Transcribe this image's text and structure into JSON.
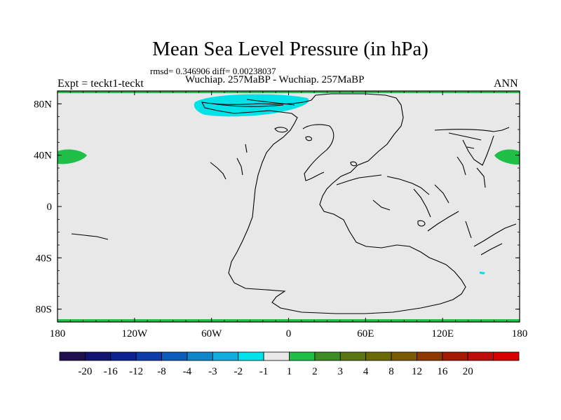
{
  "plot": {
    "title": "Mean Sea Level Pressure (in hPa)",
    "stats_line": "rmsd= 0.346906 diff= 0.00238037",
    "subtitle": "Wuchiap. 257MaBP - Wuchiap. 257MaBP",
    "left_label": "Expt = teckt1-teckt",
    "right_label": "ANN"
  },
  "axes": {
    "x_ticks": [
      {
        "value": -180,
        "label": "180"
      },
      {
        "value": -120,
        "label": "120W"
      },
      {
        "value": -60,
        "label": "60W"
      },
      {
        "value": 0,
        "label": "0"
      },
      {
        "value": 60,
        "label": "60E"
      },
      {
        "value": 120,
        "label": "120E"
      },
      {
        "value": 180,
        "label": "180"
      }
    ],
    "y_ticks": [
      {
        "value": 80,
        "label": "80N"
      },
      {
        "value": 40,
        "label": "40N"
      },
      {
        "value": 0,
        "label": "0"
      },
      {
        "value": -40,
        "label": "40S"
      },
      {
        "value": -80,
        "label": "80S"
      }
    ],
    "x_range": [
      -180,
      180
    ],
    "y_range": [
      -90,
      90
    ]
  },
  "colorbar": {
    "colors": [
      "#20104e",
      "#131470",
      "#0d2290",
      "#0d3ba8",
      "#0d5cbc",
      "#0f86c8",
      "#10aedc",
      "#00e2e8",
      "#e8e8e8",
      "#1fbf48",
      "#3e8a24",
      "#5a7614",
      "#6a6a08",
      "#7a5a04",
      "#8c3a02",
      "#a41a04",
      "#c00c0c",
      "#d80000"
    ],
    "labels": [
      "-20",
      "-16",
      "-12",
      "-8",
      "-4",
      "-3",
      "-2",
      "-1",
      "1",
      "2",
      "3",
      "4",
      "8",
      "12",
      "16",
      "20"
    ]
  },
  "colors": {
    "background_field": "#e8e8e8",
    "positive_anomaly": "#1fbf48",
    "negative_anomaly": "#00e2e8",
    "coastline": "#000000"
  }
}
